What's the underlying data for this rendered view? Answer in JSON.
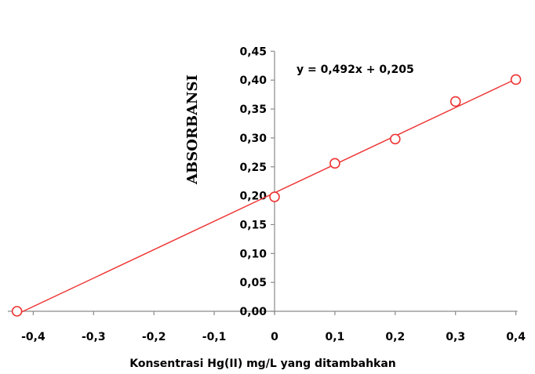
{
  "chart_data": {
    "type": "scatter",
    "title": "",
    "xlabel": "Konsentrasi Hg(II) mg/L yang ditambahkan",
    "ylabel": "ABSORBANSI",
    "xlim": [
      -0.43,
      0.4
    ],
    "ylim": [
      0,
      0.45
    ],
    "x_ticks": [
      -0.4,
      -0.3,
      -0.2,
      -0.1,
      0,
      0.1,
      0.2,
      0.3,
      0.4
    ],
    "x_tick_labels": [
      "-0,4",
      "-0,3",
      "-0,2",
      "-0,1",
      "0",
      "0,1",
      "0,2",
      "0,3",
      "0,4"
    ],
    "y_ticks": [
      0,
      0.05,
      0.1,
      0.15,
      0.2,
      0.25,
      0.3,
      0.35,
      0.4,
      0.45
    ],
    "y_tick_labels": [
      "0,00",
      "0,05",
      "0,10",
      "0,15",
      "0,20",
      "0,25",
      "0,30",
      "0,35",
      "0,40",
      "0,45"
    ],
    "grid": false,
    "series": [
      {
        "x": [
          -0.427,
          0,
          0.1,
          0.2,
          0.3,
          0.4
        ],
        "y": [
          0,
          0.198,
          0.256,
          0.298,
          0.363,
          0.401
        ],
        "marker": "open-circle",
        "color": "#ee3333"
      }
    ],
    "trendline": {
      "slope": 0.492,
      "intercept": 0.205,
      "x_range": [
        -0.427,
        0.4
      ],
      "color": "#ee3333",
      "equation": "y = 0,492x + 0,205"
    }
  }
}
